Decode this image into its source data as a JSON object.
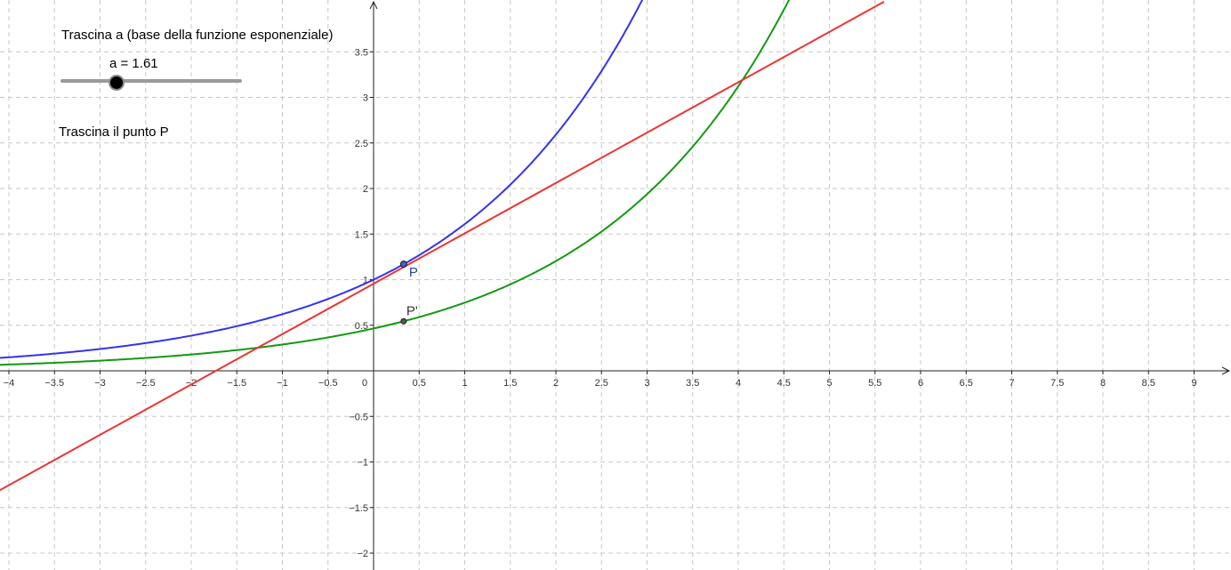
{
  "app": {
    "name": "GeoGebra graphics view"
  },
  "slider": {
    "instruction": "Trascina a (base della funzione esponenziale)",
    "label": "a = 1.61",
    "value": 1.61,
    "min": 1,
    "max": 3
  },
  "point_instruction": "Trascina il punto P",
  "points": {
    "P": {
      "label": "P",
      "x": 0.33,
      "color": "#2a3fa8"
    },
    "P_prime": {
      "label": "P'",
      "x": 0.33,
      "color": "#333333"
    }
  },
  "colors": {
    "exp_curve": "#3333ee",
    "shifted_curve": "#119911",
    "tangent_line": "#ee3333",
    "grid": "#c8c8c8",
    "axes": "#222222"
  },
  "chart_data": {
    "type": "line",
    "xlim": [
      -4.1,
      9.4
    ],
    "ylim": [
      -2.15,
      4.1
    ],
    "grid": true,
    "x_ticks": [
      "−4",
      "−3.5",
      "−3",
      "−2.5",
      "−2",
      "−1.5",
      "−1",
      "−0.5",
      "0",
      "0.5",
      "1",
      "1.5",
      "2",
      "2.5",
      "3",
      "3.5",
      "4",
      "4.5",
      "5",
      "5.5",
      "6",
      "6.5",
      "7",
      "7.5",
      "8",
      "8.5",
      "9"
    ],
    "y_ticks": [
      "−2",
      "−1.5",
      "−1",
      "−0.5",
      "0.5",
      "1",
      "1.5",
      "2",
      "2.5",
      "3",
      "3.5"
    ],
    "x_tick_values": [
      -4,
      -3.5,
      -3,
      -2.5,
      -2,
      -1.5,
      -1,
      -0.5,
      0,
      0.5,
      1,
      1.5,
      2,
      2.5,
      3,
      3.5,
      4,
      4.5,
      5,
      5.5,
      6,
      6.5,
      7,
      7.5,
      8,
      8.5,
      9
    ],
    "y_tick_values": [
      -2,
      -1.5,
      -1,
      -0.5,
      0.5,
      1,
      1.5,
      2,
      2.5,
      3,
      3.5
    ],
    "series": [
      {
        "key": "exp_curve",
        "equation": "y = a^x",
        "base": 1.61
      },
      {
        "key": "shifted_curve",
        "equation": "y = a^(x - 1.61)",
        "base": 1.61,
        "shift": 1.61
      },
      {
        "key": "tangent_line",
        "points": [
          [
            -4.1,
            -1.31
          ],
          [
            5.6,
            4.05
          ]
        ]
      }
    ]
  }
}
